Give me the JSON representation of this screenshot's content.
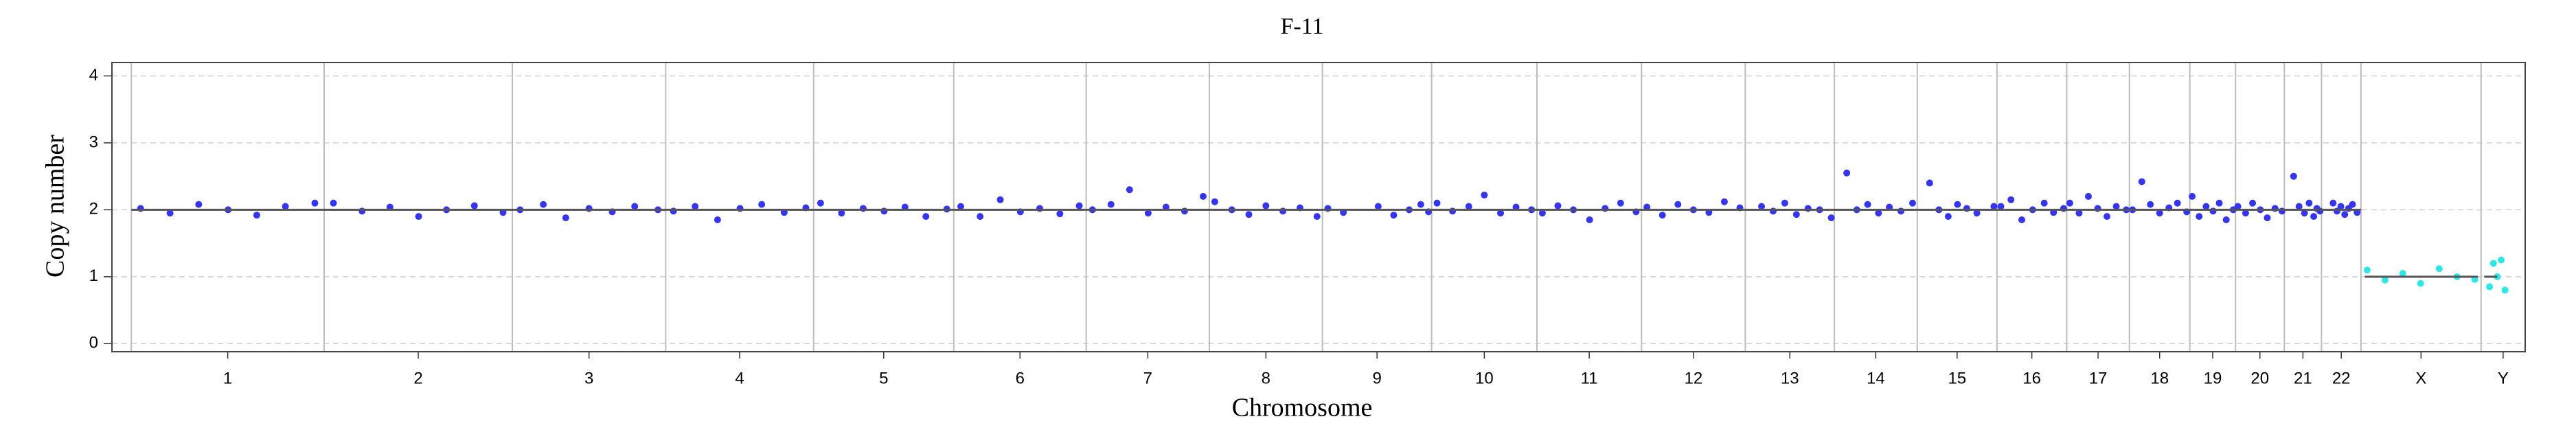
{
  "chart_data": {
    "type": "scatter",
    "title": "F-11",
    "x_label": "Chromosome",
    "y_label": "Copy number",
    "xlim": [
      -25,
      3091
    ],
    "ylim": [
      -0.12,
      4.2
    ],
    "yticks": [
      0,
      1,
      2,
      3,
      4
    ],
    "grid": true,
    "chromosomes": [
      {
        "name": "1",
        "start": 0,
        "end": 249
      },
      {
        "name": "2",
        "start": 249,
        "end": 492
      },
      {
        "name": "3",
        "start": 492,
        "end": 690
      },
      {
        "name": "4",
        "start": 690,
        "end": 881
      },
      {
        "name": "5",
        "start": 881,
        "end": 1062
      },
      {
        "name": "6",
        "start": 1062,
        "end": 1233
      },
      {
        "name": "7",
        "start": 1233,
        "end": 1392
      },
      {
        "name": "8",
        "start": 1392,
        "end": 1538
      },
      {
        "name": "9",
        "start": 1538,
        "end": 1679
      },
      {
        "name": "10",
        "start": 1679,
        "end": 1815
      },
      {
        "name": "11",
        "start": 1815,
        "end": 1950
      },
      {
        "name": "12",
        "start": 1950,
        "end": 2084
      },
      {
        "name": "13",
        "start": 2084,
        "end": 2199
      },
      {
        "name": "14",
        "start": 2199,
        "end": 2306
      },
      {
        "name": "15",
        "start": 2306,
        "end": 2409
      },
      {
        "name": "16",
        "start": 2409,
        "end": 2499
      },
      {
        "name": "17",
        "start": 2499,
        "end": 2580
      },
      {
        "name": "18",
        "start": 2580,
        "end": 2658
      },
      {
        "name": "19",
        "start": 2658,
        "end": 2717
      },
      {
        "name": "20",
        "start": 2717,
        "end": 2780
      },
      {
        "name": "21",
        "start": 2780,
        "end": 2828
      },
      {
        "name": "22",
        "start": 2828,
        "end": 2879
      },
      {
        "name": "X",
        "start": 2879,
        "end": 3034
      },
      {
        "name": "Y",
        "start": 3034,
        "end": 3091
      }
    ],
    "series": [
      {
        "color": "#3535f0",
        "x": [
          12,
          50,
          87,
          125,
          162,
          199,
          237,
          261,
          298,
          334,
          371,
          407,
          443,
          480,
          502,
          532,
          561,
          591,
          621,
          650,
          680,
          700,
          728,
          757,
          786,
          814,
          843,
          871,
          890,
          917,
          945,
          972,
          999,
          1026,
          1053,
          1071,
          1096,
          1122,
          1148,
          1173,
          1199,
          1224,
          1241,
          1265,
          1289,
          1313,
          1336,
          1360,
          1384,
          1399,
          1421,
          1443,
          1465,
          1487,
          1509,
          1531,
          1545,
          1565,
          1610,
          1630,
          1650,
          1665,
          1675,
          1686,
          1706,
          1727,
          1747,
          1768,
          1788,
          1808,
          1822,
          1842,
          1862,
          1883,
          1903,
          1923,
          1943,
          1957,
          1977,
          1997,
          2017,
          2037,
          2057,
          2077,
          2105,
          2120,
          2135,
          2150,
          2165,
          2180,
          2195,
          2215,
          2228,
          2242,
          2256,
          2270,
          2285,
          2300,
          2322,
          2334,
          2346,
          2358,
          2370,
          2383,
          2405,
          2414,
          2427,
          2441,
          2455,
          2470,
          2482,
          2495,
          2503,
          2515,
          2527,
          2539,
          2551,
          2563,
          2576,
          2584,
          2596,
          2607,
          2619,
          2631,
          2642,
          2654,
          2661,
          2670,
          2679,
          2688,
          2696,
          2705,
          2714,
          2720,
          2730,
          2739,
          2749,
          2758,
          2768,
          2777,
          2792,
          2799,
          2806,
          2812,
          2818,
          2822,
          2826,
          2843,
          2848,
          2853,
          2858,
          2863,
          2868,
          2874
        ],
        "values": [
          2.02,
          1.95,
          2.08,
          2.0,
          1.92,
          2.05,
          2.1,
          2.1,
          1.98,
          2.04,
          1.9,
          2.0,
          2.06,
          1.96,
          2.0,
          2.08,
          1.88,
          2.02,
          1.97,
          2.05,
          2.0,
          1.98,
          2.05,
          1.85,
          2.02,
          2.08,
          1.96,
          2.03,
          2.1,
          1.95,
          2.02,
          1.98,
          2.04,
          1.9,
          2.01,
          2.05,
          1.9,
          2.15,
          1.97,
          2.02,
          1.94,
          2.06,
          2.0,
          2.08,
          2.3,
          1.95,
          2.04,
          1.98,
          2.2,
          2.12,
          2.0,
          1.93,
          2.06,
          1.98,
          2.03,
          1.9,
          2.02,
          1.96,
          2.05,
          1.92,
          2.0,
          2.08,
          1.97,
          2.1,
          1.98,
          2.05,
          2.22,
          1.95,
          2.04,
          2.0,
          1.95,
          2.06,
          2.0,
          1.85,
          2.02,
          2.1,
          1.97,
          2.04,
          1.92,
          2.08,
          2.0,
          1.96,
          2.12,
          2.03,
          2.05,
          1.98,
          2.1,
          1.93,
          2.02,
          2.0,
          1.88,
          2.55,
          2.0,
          2.08,
          1.95,
          2.04,
          1.98,
          2.1,
          2.4,
          2.0,
          1.9,
          2.08,
          2.02,
          1.95,
          2.05,
          2.05,
          2.15,
          1.85,
          2.0,
          2.1,
          1.96,
          2.02,
          2.1,
          1.95,
          2.2,
          2.02,
          1.9,
          2.05,
          2.0,
          2.0,
          2.42,
          2.08,
          1.95,
          2.03,
          2.1,
          1.97,
          2.2,
          1.9,
          2.05,
          1.98,
          2.1,
          1.85,
          2.0,
          2.05,
          1.95,
          2.1,
          2.0,
          1.88,
          2.02,
          1.98,
          2.5,
          2.05,
          1.95,
          2.1,
          1.9,
          2.02,
          1.98,
          2.1,
          1.98,
          2.05,
          1.93,
          2.02,
          2.08,
          1.96
        ]
      },
      {
        "color": "#2ee6e6",
        "x": [
          2887,
          2910,
          2933,
          2956,
          2980,
          3003,
          3026,
          3045,
          3050,
          3055,
          3060,
          3065
        ],
        "values": [
          1.1,
          0.95,
          1.05,
          0.9,
          1.12,
          1.0,
          0.96,
          0.85,
          1.2,
          1.0,
          1.25,
          0.8
        ]
      }
    ],
    "segments": {
      "color": "#555555",
      "start": [
        0,
        249,
        492,
        690,
        881,
        1062,
        1233,
        1392,
        1538,
        1679,
        1815,
        1950,
        2084,
        2199,
        2306,
        2409,
        2499,
        2580,
        2658,
        2717,
        2780,
        2828,
        2884,
        3038
      ],
      "end": [
        249,
        492,
        690,
        881,
        1062,
        1233,
        1392,
        1538,
        1679,
        1815,
        1950,
        2084,
        2199,
        2306,
        2409,
        2499,
        2580,
        2658,
        2717,
        2780,
        2828,
        2879,
        3030,
        3055
      ],
      "values": [
        2,
        2,
        2,
        2,
        2,
        2,
        2,
        2,
        2,
        2,
        2,
        2,
        2,
        2,
        2,
        2,
        2,
        2,
        2,
        2,
        2,
        2,
        1,
        1
      ]
    }
  }
}
